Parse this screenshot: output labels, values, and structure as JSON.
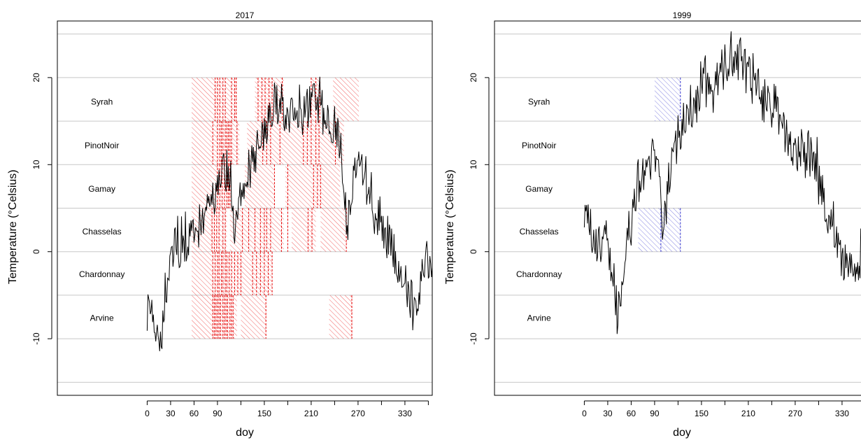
{
  "chart_data": [
    {
      "type": "line",
      "title": "2017",
      "xlabel": "doy",
      "ylabel": "Temperature (°Celsius)",
      "xlim": [
        -115,
        365
      ],
      "ylim": [
        -16.5,
        26.5
      ],
      "xticks": [
        0,
        30,
        60,
        90,
        150,
        210,
        270,
        330
      ],
      "yticks": [
        -10,
        0,
        10,
        20
      ],
      "grid_lines_y": [
        -15,
        -10,
        -5,
        0,
        5,
        10,
        15,
        20,
        25
      ],
      "line_color": "#000000",
      "hatch_color": "#e60000",
      "varieties": [
        {
          "name": "Syrah",
          "y": 17.2,
          "band": [
            15,
            20
          ],
          "ranges": [
            [
              57,
              88
            ],
            [
              88,
              115
            ],
            [
              138,
              175
            ],
            [
              210,
              222
            ],
            [
              238,
              271
            ]
          ],
          "lines": [
            87,
            90,
            93,
            97,
            100,
            108,
            112,
            114,
            142,
            147,
            151,
            156,
            160,
            173,
            210,
            216,
            221
          ]
        },
        {
          "name": "PinotNoir",
          "y": 12.2,
          "band": [
            10,
            15
          ],
          "ranges": [
            [
              57,
              118
            ],
            [
              128,
              252
            ]
          ],
          "lines": [
            84,
            90,
            93,
            95,
            97,
            100,
            102,
            104,
            106,
            108,
            115,
            148,
            153,
            158,
            170,
            200,
            205,
            210,
            216,
            220,
            241
          ]
        },
        {
          "name": "Gamay",
          "y": 7.2,
          "band": [
            5,
            10
          ],
          "ranges": [
            [
              57,
              108
            ],
            [
              125,
              163
            ],
            [
              177,
              247
            ]
          ],
          "lines": [
            90,
            93,
            96,
            99,
            102,
            104,
            106,
            163,
            180,
            213,
            218,
            222
          ]
        },
        {
          "name": "Chasselas",
          "y": 2.3,
          "band": [
            0,
            5
          ],
          "ranges": [
            [
              57,
              80
            ],
            [
              80,
              102
            ],
            [
              106,
              175
            ],
            [
              185,
              216
            ],
            [
              222,
              256
            ]
          ],
          "lines": [
            83,
            86,
            89,
            92,
            97,
            100,
            122,
            130,
            138,
            145,
            150,
            153,
            158,
            172,
            180,
            206,
            211,
            255
          ]
        },
        {
          "name": "Chardonnay",
          "y": -2.6,
          "band": [
            -5,
            0
          ],
          "ranges": [
            [
              57,
              85
            ],
            [
              85,
              160
            ]
          ],
          "lines": [
            84,
            87,
            90,
            92,
            95,
            97,
            100,
            102,
            105,
            108,
            112,
            116,
            120,
            135,
            140,
            145,
            150,
            155,
            160
          ]
        },
        {
          "name": "Arvine",
          "y": -7.6,
          "band": [
            -10,
            -5
          ],
          "ranges": [
            [
              57,
              115
            ],
            [
              120,
              153
            ],
            [
              233,
              263
            ]
          ],
          "lines": [
            84,
            86,
            88,
            90,
            92,
            94,
            97,
            99,
            101,
            103,
            106,
            108,
            110,
            152,
            262
          ]
        }
      ]
    },
    {
      "type": "line",
      "title": "1999",
      "xlabel": "doy",
      "ylabel": "Temperature (°Celsius)",
      "xlim": [
        -115,
        365
      ],
      "ylim": [
        -16.5,
        26.5
      ],
      "xticks": [
        0,
        30,
        60,
        90,
        150,
        210,
        270,
        330
      ],
      "yticks": [
        -10,
        0,
        10,
        20
      ],
      "grid_lines_y": [
        -15,
        -10,
        -5,
        0,
        5,
        10,
        15,
        20,
        25
      ],
      "line_color": "#000000",
      "hatch_color": "#3333cc",
      "varieties": [
        {
          "name": "Syrah",
          "y": 17.2,
          "band": [
            15,
            20
          ],
          "ranges": [
            [
              90,
              123
            ]
          ],
          "lines": [
            123
          ]
        },
        {
          "name": "PinotNoir",
          "y": 12.2,
          "band": [
            10,
            15
          ],
          "ranges": [],
          "lines": []
        },
        {
          "name": "Gamay",
          "y": 7.2,
          "band": [
            5,
            10
          ],
          "ranges": [],
          "lines": []
        },
        {
          "name": "Chasselas",
          "y": 2.3,
          "band": [
            0,
            5
          ],
          "ranges": [
            [
              69,
              98
            ],
            [
              98,
              123
            ]
          ],
          "lines": [
            98,
            123
          ]
        },
        {
          "name": "Chardonnay",
          "y": -2.6,
          "band": [
            -5,
            0
          ],
          "ranges": [],
          "lines": []
        },
        {
          "name": "Arvine",
          "y": -7.6,
          "band": [
            -10,
            -5
          ],
          "ranges": [],
          "lines": []
        }
      ]
    }
  ]
}
